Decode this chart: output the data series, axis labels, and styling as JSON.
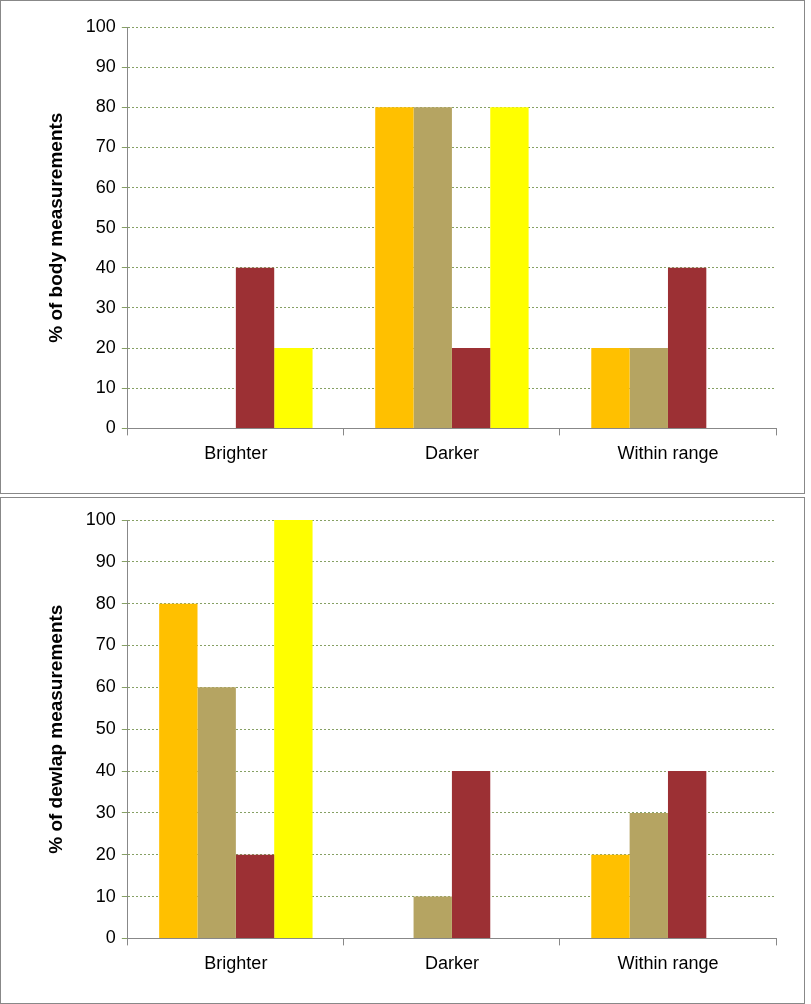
{
  "chart_data": [
    {
      "type": "bar",
      "ylabel": "% of body measurements",
      "categories": [
        "Brighter",
        "Darker",
        "Within range"
      ],
      "series": [
        {
          "color": "#ffc000",
          "values": [
            0,
            80,
            20
          ]
        },
        {
          "color": "#b5a462",
          "values": [
            0,
            80,
            20
          ]
        },
        {
          "color": "#9c3034",
          "values": [
            40,
            20,
            40
          ]
        },
        {
          "color": "#ffff00",
          "values": [
            20,
            80,
            0
          ]
        }
      ],
      "ylim": [
        0,
        100
      ],
      "yticks": [
        0,
        10,
        20,
        30,
        40,
        50,
        60,
        70,
        80,
        90,
        100
      ],
      "grid": "y",
      "legend": false
    },
    {
      "type": "bar",
      "ylabel": "% of dewlap measurements",
      "categories": [
        "Brighter",
        "Darker",
        "Within range"
      ],
      "series": [
        {
          "color": "#ffc000",
          "values": [
            80,
            0,
            20
          ]
        },
        {
          "color": "#b5a462",
          "values": [
            60,
            10,
            30
          ]
        },
        {
          "color": "#9c3034",
          "values": [
            20,
            40,
            40
          ]
        },
        {
          "color": "#ffff00",
          "values": [
            100,
            0,
            0
          ]
        }
      ],
      "ylim": [
        0,
        100
      ],
      "yticks": [
        0,
        10,
        20,
        30,
        40,
        50,
        60,
        70,
        80,
        90,
        100
      ],
      "grid": "y",
      "legend": false
    }
  ]
}
